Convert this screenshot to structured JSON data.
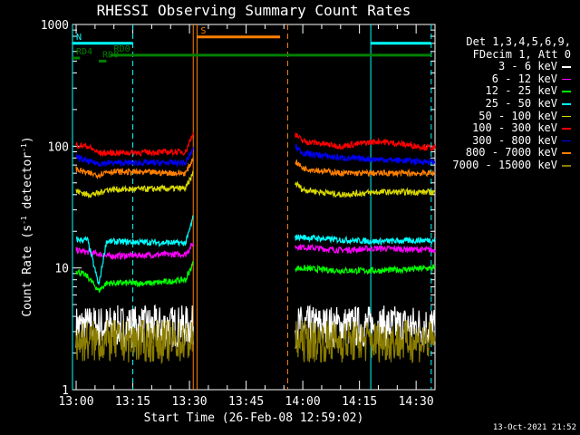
{
  "chart_data": {
    "type": "line",
    "title": "RHESSI Observing Summary Count Rates",
    "xlabel": "Start Time (26-Feb-08 12:59:02)",
    "ylabel_main": "Count Rate (s",
    "ylabel_sup1": "-1",
    "ylabel_mid": " detector",
    "ylabel_sup2": "-1",
    "ylabel_end": ")",
    "y_scale": "log",
    "ylim": [
      1,
      1000
    ],
    "xlim": [
      "12:59:02",
      "14:35:00"
    ],
    "x_ticks": [
      "13:00",
      "13:15",
      "13:30",
      "13:45",
      "14:00",
      "14:15",
      "14:30"
    ],
    "y_ticks": [
      "1",
      "10",
      "100",
      "1000"
    ],
    "legend_header": [
      "Det 1,3,4,5,6,9,",
      "FDecim 1, Att 0"
    ],
    "legend_position": "right",
    "timestamp": "13-Oct-2021 21:52",
    "series": [
      {
        "name": "3 - 6 keV",
        "color": "#ffffff",
        "segments": [
          {
            "t": [
              "13:00",
              "13:31"
            ],
            "y": [
              3.3,
              3.3
            ]
          },
          {
            "t": [
              "13:58",
              "14:35"
            ],
            "y": [
              3.3,
              3.3
            ]
          }
        ]
      },
      {
        "name": "6 - 12 keV",
        "color": "#ff00ff",
        "segments": [
          {
            "t": [
              "13:00",
              "13:06",
              "13:08",
              "13:29",
              "13:31"
            ],
            "y": [
              14,
              13,
              12.5,
              13,
              16
            ]
          },
          {
            "t": [
              "13:58",
              "14:10",
              "14:20",
              "14:35"
            ],
            "y": [
              15,
              14,
              14.5,
              14
            ]
          }
        ]
      },
      {
        "name": "12 - 25 keV",
        "color": "#00ff00",
        "segments": [
          {
            "t": [
              "13:00",
              "13:03",
              "13:06",
              "13:08",
              "13:20",
              "13:29",
              "13:31"
            ],
            "y": [
              9.5,
              8.5,
              6.5,
              7.5,
              7.5,
              8,
              11
            ]
          },
          {
            "t": [
              "13:58",
              "14:10",
              "14:20",
              "14:35"
            ],
            "y": [
              10,
              9.5,
              9.5,
              10
            ]
          }
        ]
      },
      {
        "name": "25 - 50 keV",
        "color": "#00ffff",
        "segments": [
          {
            "t": [
              "13:00",
              "13:03",
              "13:06",
              "13:08",
              "13:29",
              "13:31"
            ],
            "y": [
              17,
              17,
              7.2,
              16.5,
              16,
              26
            ]
          },
          {
            "t": [
              "13:58",
              "14:10",
              "14:20",
              "14:35"
            ],
            "y": [
              18,
              17,
              16.5,
              17
            ]
          }
        ]
      },
      {
        "name": "50 - 100 keV",
        "color": "#d8d800",
        "segments": [
          {
            "t": [
              "13:00",
              "13:03",
              "13:06",
              "13:08",
              "13:29",
              "13:31"
            ],
            "y": [
              43,
              40,
              41,
              44,
              45,
              60
            ]
          },
          {
            "t": [
              "13:58",
              "14:00",
              "14:10",
              "14:20",
              "14:35"
            ],
            "y": [
              50,
              44,
              40,
              42,
              42
            ]
          }
        ]
      },
      {
        "name": "100 - 300 keV",
        "color": "#ff0000",
        "segments": [
          {
            "t": [
              "13:00",
              "13:03",
              "13:06",
              "13:08",
              "13:29",
              "13:31"
            ],
            "y": [
              102,
              100,
              88,
              88,
              90,
              130
            ]
          },
          {
            "t": [
              "13:58",
              "14:00",
              "14:10",
              "14:20",
              "14:35"
            ],
            "y": [
              125,
              110,
              100,
              110,
              96
            ]
          }
        ]
      },
      {
        "name": "300 - 800 keV",
        "color": "#0000ff",
        "segments": [
          {
            "t": [
              "13:00",
              "13:03",
              "13:06",
              "13:08",
              "13:29",
              "13:31"
            ],
            "y": [
              82,
              75,
              72,
              73,
              73,
              95
            ]
          },
          {
            "t": [
              "13:58",
              "14:00",
              "14:10",
              "14:20",
              "14:35"
            ],
            "y": [
              100,
              88,
              80,
              78,
              74
            ]
          }
        ]
      },
      {
        "name": "800 - 7000 keV",
        "color": "#ff8000",
        "segments": [
          {
            "t": [
              "13:00",
              "13:03",
              "13:06",
              "13:08",
              "13:29",
              "13:31"
            ],
            "y": [
              65,
              60,
              58,
              62,
              60,
              80
            ]
          },
          {
            "t": [
              "13:58",
              "14:00",
              "14:10",
              "14:20",
              "14:35"
            ],
            "y": [
              75,
              66,
              60,
              60,
              60
            ]
          }
        ]
      },
      {
        "name": "7000 - 15000 keV",
        "color": "#8b7d00",
        "segments": [
          {
            "t": [
              "13:00",
              "13:31"
            ],
            "y": [
              2.5,
              2.5
            ]
          },
          {
            "t": [
              "13:58",
              "14:35"
            ],
            "y": [
              2.5,
              2.5
            ]
          }
        ]
      }
    ],
    "flag_bars": [
      {
        "label": "N",
        "color": "#00ffff",
        "y": 700,
        "spans": [
          [
            "12:59:02",
            "13:15"
          ],
          [
            "14:18",
            "14:34"
          ]
        ]
      },
      {
        "label": "S",
        "color": "#ff8000",
        "y": 790,
        "spans": [
          [
            "13:32",
            "13:54"
          ]
        ]
      },
      {
        "label": "RD0",
        "color": "#008000",
        "y": 560,
        "spans": [
          [
            "13:09",
            "14:34"
          ]
        ]
      },
      {
        "label": "RD0",
        "color": "#008000",
        "y": 500,
        "spans": [
          [
            "13:06",
            "13:08"
          ]
        ]
      },
      {
        "label": "RD4",
        "color": "#008000",
        "y": 530,
        "spans": [
          [
            "12:59:02",
            "13:01"
          ]
        ]
      }
    ],
    "vertical_lines": [
      {
        "t": "12:59:02",
        "color": "#00ffff",
        "dashed": false
      },
      {
        "t": "13:15",
        "color": "#00ffff",
        "dashed": true
      },
      {
        "t": "13:31",
        "color": "#ff8000",
        "dashed": false
      },
      {
        "t": "13:32",
        "color": "#ff8000",
        "dashed": false
      },
      {
        "t": "13:56",
        "color": "#ff8000",
        "dashed": true
      },
      {
        "t": "14:18",
        "color": "#00ffff",
        "dashed": false
      },
      {
        "t": "14:34",
        "color": "#00ffff",
        "dashed": true
      }
    ]
  }
}
